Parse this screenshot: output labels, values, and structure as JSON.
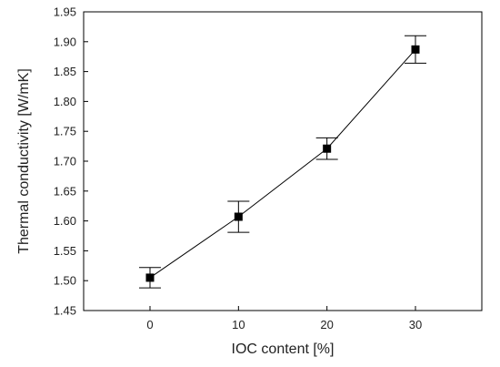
{
  "chart_data": {
    "type": "scatter",
    "title": "",
    "xlabel": "IOC content [%]",
    "ylabel": "Thermal conductivity [W/mK]",
    "x_ticks": [
      "0",
      "10",
      "20",
      "30"
    ],
    "y_ticks": [
      "1.45",
      "1.50",
      "1.55",
      "1.60",
      "1.65",
      "1.70",
      "1.75",
      "1.80",
      "1.85",
      "1.90",
      "1.95"
    ],
    "xlim": [
      -7.5,
      37.5
    ],
    "ylim": [
      1.45,
      1.95
    ],
    "grid": false,
    "legend": "none",
    "series": [
      {
        "x": [
          0,
          10,
          20,
          30
        ],
        "y": [
          1.505,
          1.607,
          1.721,
          1.887
        ],
        "y_err": [
          0.017,
          0.026,
          0.018,
          0.023
        ],
        "marker": "square",
        "line": true,
        "color": "#000000"
      }
    ]
  }
}
